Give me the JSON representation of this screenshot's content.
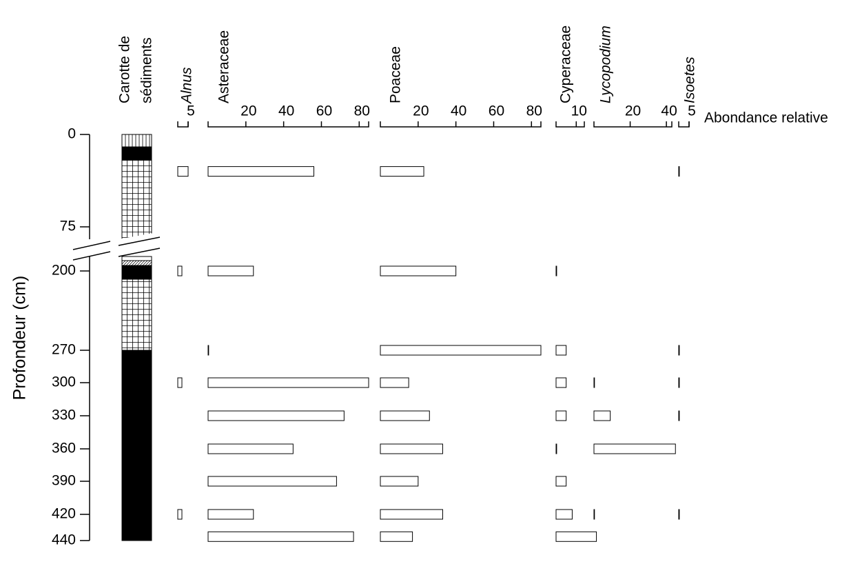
{
  "chart_data": {
    "type": "bar",
    "y_label": "Profondeur (cm)",
    "x_label": "Abondance relative",
    "core_label": [
      "Carotte de",
      "sédiments"
    ],
    "ylim": [
      0,
      440
    ],
    "yticks": [
      0,
      75,
      200,
      270,
      300,
      330,
      360,
      390,
      420,
      440
    ],
    "axis_break": [
      75,
      200
    ],
    "y": [
      30,
      200,
      270,
      300,
      330,
      360,
      390,
      420,
      437
    ],
    "bar_color": "#ffffff",
    "series": [
      {
        "name": "Alnus",
        "italic": true,
        "xlim": [
          0,
          5
        ],
        "xticks": [
          5
        ],
        "values": [
          5,
          2,
          null,
          2,
          null,
          null,
          null,
          2,
          null
        ]
      },
      {
        "name": "Asteraceae",
        "italic": false,
        "xlim": [
          0,
          85
        ],
        "xticks": [
          20,
          40,
          60,
          80
        ],
        "values": [
          56,
          24,
          0.3,
          85,
          72,
          45,
          68,
          24,
          77
        ]
      },
      {
        "name": "Poaceae",
        "italic": false,
        "xlim": [
          0,
          85
        ],
        "xticks": [
          20,
          40,
          60,
          80
        ],
        "values": [
          23,
          40,
          85,
          15,
          26,
          33,
          20,
          33,
          17
        ]
      },
      {
        "name": "Cyperaceae",
        "italic": false,
        "xlim": [
          0,
          14
        ],
        "xticks": [
          10
        ],
        "values": [
          null,
          0.3,
          5,
          5,
          5,
          0.3,
          5,
          8,
          20
        ]
      },
      {
        "name": "Lycopodium",
        "italic": true,
        "xlim": [
          0,
          43
        ],
        "xticks": [
          20,
          40
        ],
        "values": [
          null,
          null,
          null,
          0.3,
          9,
          45,
          null,
          0.3,
          null
        ]
      },
      {
        "name": "Isoetes",
        "italic": true,
        "xlim": [
          0,
          5
        ],
        "xticks": [
          5
        ],
        "values": [
          0.3,
          null,
          0.3,
          0.3,
          0.3,
          null,
          null,
          0.3,
          null
        ]
      }
    ]
  }
}
